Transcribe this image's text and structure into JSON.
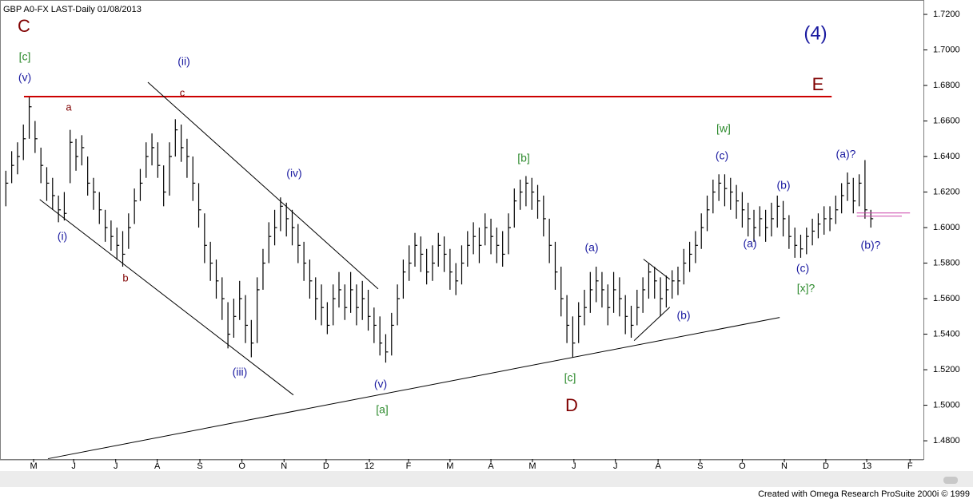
{
  "chart_data": {
    "type": "ohlc",
    "title": "GBP A0-FX LAST-Daily   01/08/2013",
    "footer": "Created with Omega Research ProSuite 2000i © 1999",
    "color": "#000000",
    "xlim": [
      -1,
      157
    ],
    "ylim": [
      1.4697,
      1.7281
    ],
    "xticks": [
      {
        "value": 4.75,
        "label": "M"
      },
      {
        "value": 11.6,
        "label": "J"
      },
      {
        "value": 18.8,
        "label": "J"
      },
      {
        "value": 25.9,
        "label": "A"
      },
      {
        "value": 33.2,
        "label": "S"
      },
      {
        "value": 40.4,
        "label": "O"
      },
      {
        "value": 47.6,
        "label": "N"
      },
      {
        "value": 54.8,
        "label": "D"
      },
      {
        "value": 62.2,
        "label": "12"
      },
      {
        "value": 68.9,
        "label": "F"
      },
      {
        "value": 76.0,
        "label": "M"
      },
      {
        "value": 83.0,
        "label": "A"
      },
      {
        "value": 90.1,
        "label": "M"
      },
      {
        "value": 97.2,
        "label": "J"
      },
      {
        "value": 104.3,
        "label": "J"
      },
      {
        "value": 111.6,
        "label": "A"
      },
      {
        "value": 118.8,
        "label": "S"
      },
      {
        "value": 126.0,
        "label": "O"
      },
      {
        "value": 133.2,
        "label": "N"
      },
      {
        "value": 140.3,
        "label": "D"
      },
      {
        "value": 147.3,
        "label": "13"
      },
      {
        "value": 154.7,
        "label": "F"
      }
    ],
    "yticks": [
      {
        "value": 1.48,
        "label": "1.4800"
      },
      {
        "value": 1.5,
        "label": "1.5000"
      },
      {
        "value": 1.52,
        "label": "1.5200"
      },
      {
        "value": 1.54,
        "label": "1.5400"
      },
      {
        "value": 1.56,
        "label": "1.5600"
      },
      {
        "value": 1.58,
        "label": "1.5800"
      },
      {
        "value": 1.6,
        "label": "1.6000"
      },
      {
        "value": 1.62,
        "label": "1.6200"
      },
      {
        "value": 1.64,
        "label": "1.6400"
      },
      {
        "value": 1.66,
        "label": "1.6600"
      },
      {
        "value": 1.68,
        "label": "1.6800"
      },
      {
        "value": 1.7,
        "label": "1.7000"
      },
      {
        "value": 1.72,
        "label": "1.7200"
      }
    ],
    "high": [
      1.632,
      1.643,
      1.648,
      1.658,
      1.674,
      1.66,
      1.645,
      1.634,
      1.628,
      1.618,
      1.62,
      1.655,
      1.65,
      1.652,
      1.64,
      1.628,
      1.62,
      1.61,
      1.604,
      1.6,
      1.598,
      1.608,
      1.622,
      1.633,
      1.648,
      1.653,
      1.648,
      1.635,
      1.648,
      1.661,
      1.658,
      1.65,
      1.64,
      1.625,
      1.608,
      1.592,
      1.582,
      1.572,
      1.558,
      1.56,
      1.57,
      1.562,
      1.548,
      1.572,
      1.588,
      1.603,
      1.61,
      1.617,
      1.614,
      1.61,
      1.602,
      1.592,
      1.582,
      1.572,
      1.568,
      1.558,
      1.568,
      1.575,
      1.568,
      1.575,
      1.568,
      1.57,
      1.565,
      1.555,
      1.55,
      1.54,
      1.552,
      1.568,
      1.582,
      1.59,
      1.597,
      1.595,
      1.588,
      1.59,
      1.597,
      1.595,
      1.588,
      1.58,
      1.59,
      1.598,
      1.603,
      1.6,
      1.608,
      1.605,
      1.6,
      1.598,
      1.608,
      1.622,
      1.627,
      1.629,
      1.628,
      1.624,
      1.618,
      1.605,
      1.592,
      1.578,
      1.562,
      1.55,
      1.558,
      1.565,
      1.575,
      1.578,
      1.575,
      1.568,
      1.575,
      1.572,
      1.562,
      1.556,
      1.565,
      1.572,
      1.58,
      1.578,
      1.572,
      1.573,
      1.576,
      1.578,
      1.588,
      1.592,
      1.598,
      1.608,
      1.618,
      1.627,
      1.63,
      1.63,
      1.628,
      1.624,
      1.62,
      1.614,
      1.61,
      1.612,
      1.61,
      1.614,
      1.618,
      1.615,
      1.607,
      1.6,
      1.596,
      1.6,
      1.605,
      1.608,
      1.612,
      1.612,
      1.618,
      1.625,
      1.631,
      1.628,
      1.63,
      1.638,
      1.61
    ],
    "low": [
      1.612,
      1.625,
      1.63,
      1.638,
      1.65,
      1.642,
      1.625,
      1.615,
      1.61,
      1.603,
      1.604,
      1.625,
      1.632,
      1.635,
      1.618,
      1.61,
      1.602,
      1.592,
      1.587,
      1.582,
      1.578,
      1.588,
      1.602,
      1.615,
      1.628,
      1.635,
      1.628,
      1.612,
      1.618,
      1.64,
      1.637,
      1.628,
      1.615,
      1.6,
      1.58,
      1.57,
      1.56,
      1.548,
      1.532,
      1.538,
      1.548,
      1.535,
      1.527,
      1.535,
      1.565,
      1.58,
      1.59,
      1.598,
      1.595,
      1.59,
      1.58,
      1.57,
      1.56,
      1.548,
      1.545,
      1.54,
      1.545,
      1.555,
      1.548,
      1.552,
      1.545,
      1.548,
      1.542,
      1.535,
      1.528,
      1.524,
      1.528,
      1.545,
      1.56,
      1.57,
      1.578,
      1.575,
      1.568,
      1.57,
      1.578,
      1.575,
      1.565,
      1.562,
      1.568,
      1.578,
      1.585,
      1.58,
      1.59,
      1.585,
      1.58,
      1.578,
      1.585,
      1.6,
      1.61,
      1.612,
      1.61,
      1.605,
      1.595,
      1.58,
      1.565,
      1.55,
      1.535,
      1.527,
      1.535,
      1.545,
      1.552,
      1.558,
      1.555,
      1.545,
      1.552,
      1.55,
      1.54,
      1.538,
      1.545,
      1.552,
      1.56,
      1.56,
      1.55,
      1.555,
      1.56,
      1.562,
      1.568,
      1.575,
      1.58,
      1.588,
      1.598,
      1.608,
      1.615,
      1.612,
      1.61,
      1.605,
      1.6,
      1.595,
      1.592,
      1.595,
      1.592,
      1.595,
      1.6,
      1.595,
      1.588,
      1.583,
      1.583,
      1.585,
      1.59,
      1.594,
      1.596,
      1.598,
      1.602,
      1.608,
      1.615,
      1.608,
      1.612,
      1.605,
      1.6
    ],
    "close": [
      1.625,
      1.635,
      1.64,
      1.65,
      1.668,
      1.65,
      1.635,
      1.625,
      1.618,
      1.61,
      1.608,
      1.648,
      1.64,
      1.645,
      1.625,
      1.62,
      1.61,
      1.6,
      1.595,
      1.59,
      1.585,
      1.6,
      1.615,
      1.625,
      1.64,
      1.645,
      1.635,
      1.62,
      1.64,
      1.655,
      1.645,
      1.64,
      1.625,
      1.61,
      1.59,
      1.58,
      1.57,
      1.56,
      1.54,
      1.55,
      1.56,
      1.545,
      1.535,
      1.565,
      1.58,
      1.595,
      1.6,
      1.612,
      1.605,
      1.6,
      1.59,
      1.58,
      1.57,
      1.56,
      1.555,
      1.545,
      1.56,
      1.565,
      1.555,
      1.565,
      1.555,
      1.56,
      1.55,
      1.545,
      1.535,
      1.53,
      1.545,
      1.56,
      1.575,
      1.58,
      1.59,
      1.585,
      1.575,
      1.58,
      1.59,
      1.585,
      1.575,
      1.57,
      1.58,
      1.59,
      1.595,
      1.59,
      1.6,
      1.595,
      1.59,
      1.585,
      1.6,
      1.615,
      1.62,
      1.625,
      1.62,
      1.615,
      1.605,
      1.59,
      1.575,
      1.56,
      1.545,
      1.535,
      1.55,
      1.555,
      1.565,
      1.57,
      1.565,
      1.555,
      1.565,
      1.56,
      1.55,
      1.545,
      1.555,
      1.565,
      1.575,
      1.57,
      1.56,
      1.565,
      1.57,
      1.57,
      1.58,
      1.585,
      1.59,
      1.6,
      1.61,
      1.62,
      1.625,
      1.622,
      1.62,
      1.615,
      1.61,
      1.605,
      1.6,
      1.605,
      1.6,
      1.605,
      1.612,
      1.605,
      1.595,
      1.59,
      1.588,
      1.595,
      1.598,
      1.602,
      1.605,
      1.605,
      1.61,
      1.618,
      1.625,
      1.615,
      1.625,
      1.61,
      1.605
    ],
    "lines": [
      {
        "color": "#cc0000",
        "x": [
          3.1,
          141.3
        ],
        "y": [
          1.6737,
          1.6737
        ]
      },
      {
        "color": "#000000",
        "x": [
          24.3,
          63.7
        ],
        "y": [
          1.6818,
          1.5655
        ]
      },
      {
        "color": "#000000",
        "x": [
          5.8,
          49.2
        ],
        "y": [
          1.6158,
          1.5058
        ]
      },
      {
        "color": "#000000",
        "x": [
          7.2,
          132.4
        ],
        "y": [
          1.4699,
          1.5494
        ]
      },
      {
        "color": "#000000",
        "x": [
          109.1,
          113.6
        ],
        "y": [
          1.5822,
          1.5709
        ]
      },
      {
        "color": "#000000",
        "x": [
          107.5,
          113.6
        ],
        "y": [
          1.5364,
          1.5552
        ]
      },
      {
        "color": "#cc44aa",
        "x": [
          145.6,
          154.7
        ],
        "y": [
          1.6082,
          1.6082
        ]
      },
      {
        "color": "#cc44aa",
        "x": [
          145.6,
          153.3
        ],
        "y": [
          1.6064,
          1.6064
        ]
      }
    ],
    "annotations": [
      {
        "text": "C",
        "color": "#800000"
      },
      {
        "text": "[c]",
        "color": "#2e8b2e"
      },
      {
        "text": "(v)",
        "color": "#1a1aa0"
      },
      {
        "text": "a",
        "color": "#800000"
      },
      {
        "text": "(ii)",
        "color": "#1a1aa0"
      },
      {
        "text": "c",
        "color": "#800000"
      },
      {
        "text": "(i)",
        "color": "#1a1aa0"
      },
      {
        "text": "b",
        "color": "#800000"
      },
      {
        "text": "(iv)",
        "color": "#1a1aa0"
      },
      {
        "text": "(iii)",
        "color": "#1a1aa0"
      },
      {
        "text": "(v)",
        "color": "#1a1aa0"
      },
      {
        "text": "[a]",
        "color": "#2e8b2e"
      },
      {
        "text": "[b]",
        "color": "#2e8b2e"
      },
      {
        "text": "(a)",
        "color": "#1a1aa0"
      },
      {
        "text": "[c]",
        "color": "#2e8b2e"
      },
      {
        "text": "D",
        "color": "#800000"
      },
      {
        "text": "(b)",
        "color": "#1a1aa0"
      },
      {
        "text": "[w]",
        "color": "#2e8b2e"
      },
      {
        "text": "(c)",
        "color": "#1a1aa0"
      },
      {
        "text": "(a)",
        "color": "#1a1aa0"
      },
      {
        "text": "(b)",
        "color": "#1a1aa0"
      },
      {
        "text": "(c)",
        "color": "#1a1aa0"
      },
      {
        "text": "[x]?",
        "color": "#2e8b2e"
      },
      {
        "text": "(a)?",
        "color": "#1a1aa0"
      },
      {
        "text": "(b)?",
        "color": "#1a1aa0"
      },
      {
        "text": "(4)",
        "color": "#1a1aa0"
      },
      {
        "text": "E",
        "color": "#800000"
      }
    ]
  }
}
